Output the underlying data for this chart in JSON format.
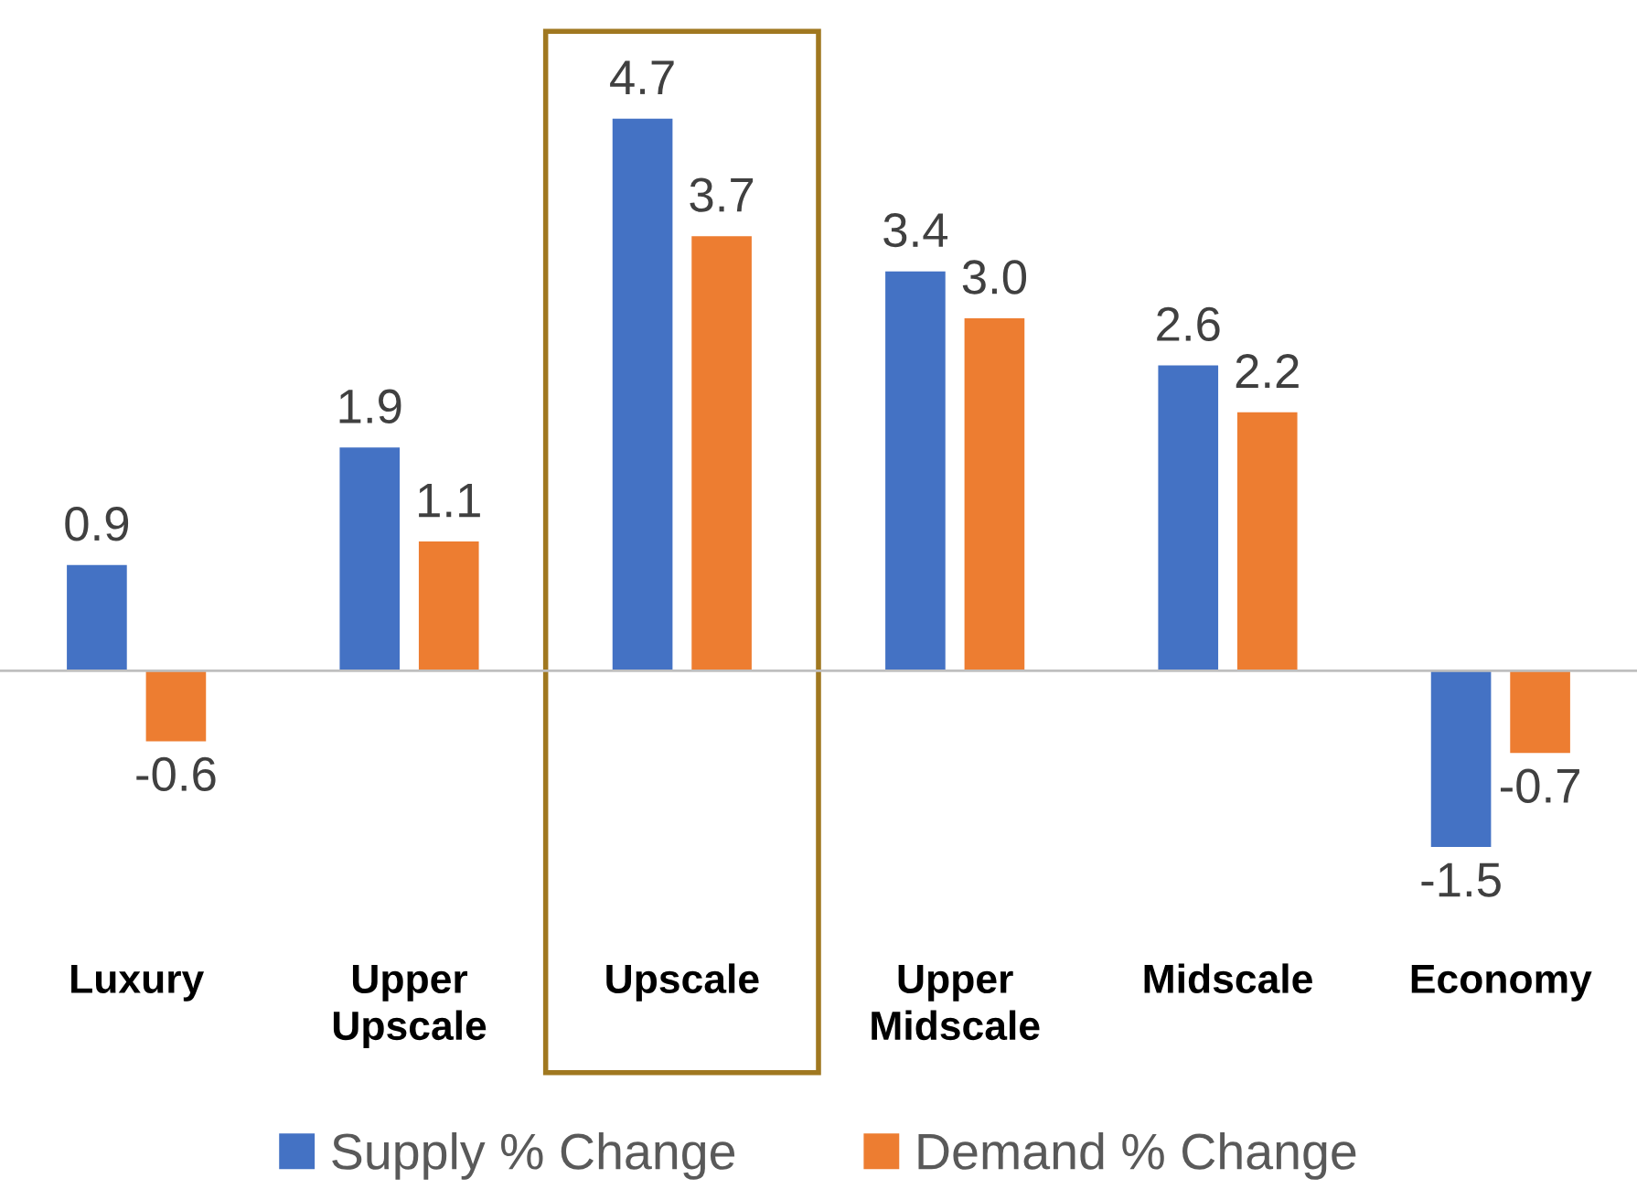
{
  "chart_data": {
    "type": "bar",
    "categories": [
      "Luxury",
      "Upper\nUpscale",
      "Upscale",
      "Upper\nMidscale",
      "Midscale",
      "Economy"
    ],
    "series": [
      {
        "name": "Supply % Change",
        "color": "#4472c4",
        "values": [
          0.9,
          1.9,
          4.7,
          3.4,
          2.6,
          -1.5
        ],
        "value_labels": [
          "0.9",
          "1.9",
          "4.7",
          "3.4",
          "2.6",
          "-1.5"
        ]
      },
      {
        "name": "Demand % Change",
        "color": "#ed7d31",
        "values": [
          -0.6,
          1.1,
          3.7,
          3.0,
          2.2,
          -0.7
        ],
        "value_labels": [
          "-0.6",
          "1.1",
          "3.7",
          "3.0",
          "2.2",
          "-0.7"
        ]
      }
    ],
    "legend": "bottom"
  }
}
